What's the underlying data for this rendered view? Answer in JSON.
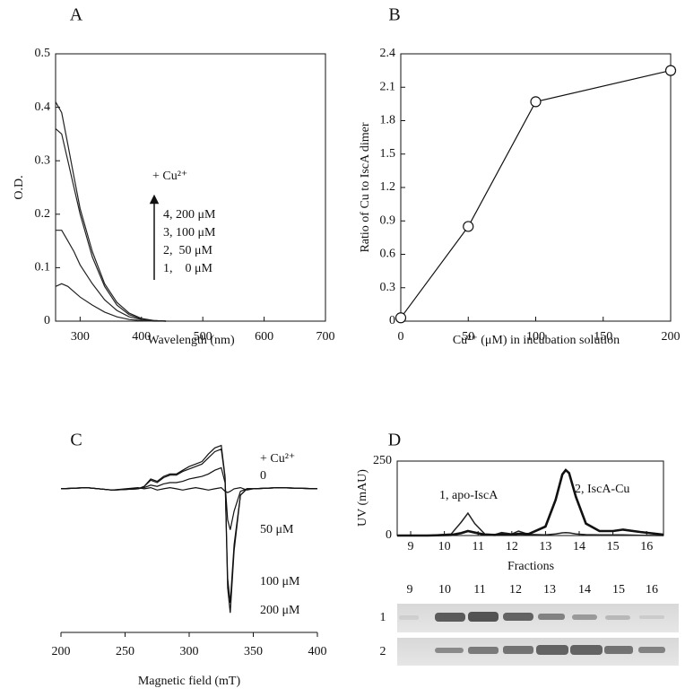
{
  "chart_data": [
    {
      "type": "line",
      "label": "A",
      "xlabel": "Wavelength (nm)",
      "ylabel": "O.D.",
      "annotations": [
        "+ Cu²⁺"
      ],
      "x": [
        260,
        270,
        280,
        290,
        300,
        320,
        340,
        360,
        380,
        400,
        420,
        440
      ],
      "series": [
        {
          "name": "1,    0 μM",
          "color": "#222",
          "values": [
            0.065,
            0.07,
            0.065,
            0.055,
            0.045,
            0.03,
            0.017,
            0.008,
            0.003,
            0.001,
            0,
            0
          ]
        },
        {
          "name": "2,  50 μM",
          "color": "#222",
          "values": [
            0.17,
            0.17,
            0.15,
            0.13,
            0.105,
            0.07,
            0.04,
            0.02,
            0.008,
            0.003,
            0.001,
            0
          ]
        },
        {
          "name": "3, 100 μM",
          "color": "#222",
          "values": [
            0.36,
            0.35,
            0.3,
            0.25,
            0.2,
            0.12,
            0.065,
            0.03,
            0.012,
            0.004,
            0.001,
            0
          ]
        },
        {
          "name": "4, 200 μM",
          "color": "#222",
          "values": [
            0.41,
            0.39,
            0.33,
            0.27,
            0.21,
            0.13,
            0.07,
            0.035,
            0.015,
            0.005,
            0.001,
            0
          ]
        }
      ],
      "xlim": [
        260,
        700
      ],
      "xticks": [
        300,
        400,
        500,
        600,
        700
      ],
      "ylim": [
        0,
        0.5
      ],
      "yticks": [
        0,
        0.1,
        0.2,
        0.3,
        0.4,
        0.5
      ]
    },
    {
      "type": "line",
      "label": "B",
      "xlabel": "Cu²⁺ (μM) in incubation solution",
      "ylabel": "Ratio of Cu to IscA dimer",
      "markers": true,
      "x": [
        0,
        50,
        100,
        200
      ],
      "series": [
        {
          "color": "#111",
          "values": [
            0.03,
            0.85,
            1.97,
            2.25
          ]
        }
      ],
      "xlim": [
        0,
        200
      ],
      "xticks": [
        0,
        50,
        100,
        150,
        200
      ],
      "ylim": [
        0,
        2.4
      ],
      "yticks": [
        0,
        0.3,
        0.6,
        0.9,
        1.2,
        1.5,
        1.8,
        2.1,
        2.4
      ]
    },
    {
      "type": "line",
      "label": "C",
      "xlabel": "Magnetic field (mT)",
      "annotations": [
        "+ Cu²⁺"
      ],
      "x": [
        200,
        220,
        240,
        260,
        265,
        270,
        275,
        280,
        285,
        290,
        295,
        300,
        305,
        310,
        315,
        320,
        325,
        328,
        330,
        332,
        335,
        340,
        345,
        350,
        370,
        400
      ],
      "series": [
        {
          "name": "0",
          "color": "#111",
          "values": [
            0,
            0.01,
            -0.01,
            0.01,
            0,
            0.01,
            -0.01,
            0,
            0.01,
            0,
            -0.01,
            0,
            0.01,
            0,
            -0.01,
            0,
            0.01,
            -0.02,
            -0.03,
            -0.02,
            0,
            0.01,
            -0.01,
            0,
            0.01,
            0
          ]
        },
        {
          "name": "50 μM",
          "color": "#111",
          "values": [
            0,
            0.01,
            -0.01,
            0,
            0.01,
            0.03,
            0.02,
            0.04,
            0.05,
            0.05,
            0.06,
            0.08,
            0.09,
            0.1,
            0.12,
            0.15,
            0.17,
            0.05,
            -0.25,
            -0.33,
            -0.18,
            -0.02,
            0,
            0,
            0.01,
            0
          ]
        },
        {
          "name": "100 μM",
          "color": "#111",
          "values": [
            0,
            0.01,
            -0.01,
            0,
            0.02,
            0.07,
            0.05,
            0.09,
            0.11,
            0.11,
            0.14,
            0.16,
            0.18,
            0.2,
            0.25,
            0.3,
            0.32,
            0.09,
            -0.72,
            -0.92,
            -0.45,
            -0.05,
            0,
            0,
            0.01,
            0
          ]
        },
        {
          "name": "200 μM",
          "color": "#111",
          "values": [
            0,
            0.01,
            -0.01,
            0,
            0.02,
            0.08,
            0.06,
            0.1,
            0.12,
            0.12,
            0.15,
            0.18,
            0.2,
            0.22,
            0.28,
            0.33,
            0.35,
            0.1,
            -0.8,
            -1.0,
            -0.5,
            -0.05,
            0,
            0,
            0.01,
            0
          ]
        }
      ],
      "xlim": [
        200,
        400
      ],
      "xticks": [
        200,
        250,
        300,
        350,
        400
      ],
      "ylim": [
        -1.1,
        0.6
      ]
    },
    {
      "type": "line",
      "label": "D",
      "xlabel": "Fractions",
      "ylabel": "UV (mAU)",
      "x": [
        8.6,
        9.5,
        10.2,
        10.5,
        10.7,
        10.9,
        11.2,
        11.5,
        11.7,
        12.0,
        12.2,
        12.5,
        13.0,
        13.3,
        13.5,
        13.6,
        13.7,
        13.9,
        14.2,
        14.6,
        15.0,
        15.3,
        15.8,
        16.5
      ],
      "series": [
        {
          "name": "1, apo-IscA",
          "color": "#222",
          "width": 1.5,
          "values": [
            0,
            0,
            5,
            45,
            75,
            40,
            5,
            3,
            10,
            5,
            15,
            4,
            2,
            5,
            9,
            10,
            9,
            5,
            3,
            2,
            2,
            2,
            1,
            0
          ]
        },
        {
          "name": "2, IscA-Cu",
          "color": "#111",
          "width": 2.6,
          "values": [
            0,
            0,
            2,
            8,
            15,
            10,
            3,
            2,
            4,
            3,
            6,
            5,
            30,
            120,
            205,
            220,
            210,
            130,
            40,
            15,
            15,
            20,
            12,
            3
          ]
        }
      ],
      "xlim": [
        8.6,
        16.5
      ],
      "xticks": [
        9,
        10,
        11,
        12,
        13,
        14,
        15,
        16
      ],
      "ylim": [
        0,
        250
      ],
      "yticks": [
        0,
        250
      ]
    }
  ],
  "gel": {
    "lanes": [
      "9",
      "10",
      "11",
      "12",
      "13",
      "14",
      "15",
      "16"
    ],
    "rows": [
      "1",
      "2"
    ]
  }
}
